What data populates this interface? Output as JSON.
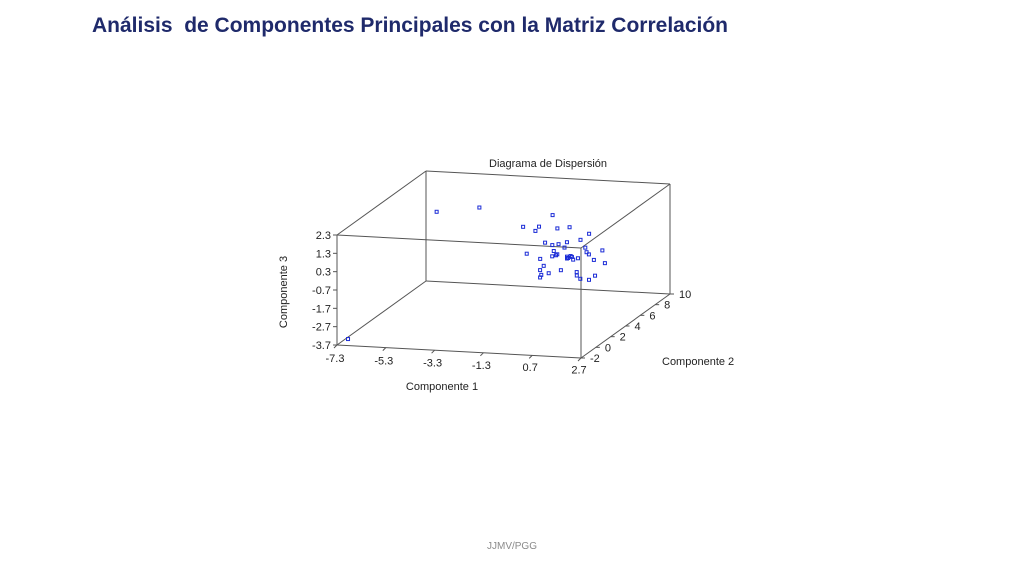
{
  "slide": {
    "title": "Análisis  de Componentes Principales con la Matriz Correlación",
    "footer": "JJMV/PGG"
  },
  "colors": {
    "title": "#1f2a6b",
    "points": "#1a2bd6",
    "axes": "#555555"
  },
  "chart_data": {
    "type": "scatter",
    "projection": "3d",
    "title": "Diagrama de Dispersión",
    "xlabel": "Componente 1",
    "ylabel": "Componente 2",
    "zlabel": "Componente 3",
    "xlim": [
      -7.3,
      2.7
    ],
    "ylim": [
      -2,
      10
    ],
    "zlim": [
      -3.7,
      2.3
    ],
    "xticks": [
      "-7.3",
      "-5.3",
      "-3.3",
      "-1.3",
      "0.7",
      "2.7"
    ],
    "yticks": [
      "-2",
      "0",
      "2",
      "4",
      "6",
      "8",
      "10"
    ],
    "zticks": [
      "2.3",
      "1.3",
      "0.3",
      "-0.7",
      "-1.7",
      "-2.7",
      "-3.7"
    ],
    "grid": false,
    "series": [
      {
        "x": [
          -7.0,
          -5.8,
          -4.2,
          -1.8,
          -1.6,
          -1.5,
          -1.3,
          -1.2,
          -1.0,
          -0.9,
          -0.8,
          -0.7,
          -0.6,
          -0.5,
          -0.5,
          -0.4,
          -0.3,
          -0.2,
          -0.1,
          0.0,
          0.0,
          0.1,
          0.2,
          0.3,
          0.4,
          0.5,
          0.6,
          0.7,
          0.8,
          0.9,
          1.0,
          1.1,
          1.2,
          1.4,
          1.6,
          -1.1,
          -0.3,
          0.2,
          0.6,
          -0.8,
          0.0,
          0.3,
          0.9,
          -0.6,
          0.4,
          1.3
        ],
        "y": [
          -1.5,
          6.5,
          7.0,
          5.0,
          6.0,
          4.5,
          5.5,
          7.0,
          6.5,
          5.0,
          4.0,
          6.0,
          4.5,
          5.5,
          3.5,
          5.0,
          4.0,
          6.0,
          4.5,
          5.0,
          3.0,
          5.5,
          4.0,
          4.5,
          5.0,
          3.5,
          6.0,
          4.0,
          5.0,
          4.5,
          3.5,
          5.0,
          4.0,
          5.5,
          4.5,
          5.0,
          4.5,
          5.0,
          4.5,
          4.0,
          5.0,
          4.0,
          5.0,
          3.5,
          5.5,
          4.5
        ],
        "z": [
          -3.5,
          1.2,
          1.4,
          1.1,
          0.6,
          -0.2,
          1.0,
          1.2,
          -0.6,
          0.3,
          -0.9,
          0.8,
          -1.2,
          0.1,
          -0.5,
          -0.3,
          0.5,
          0.9,
          -1.0,
          -0.4,
          0.2,
          -0.7,
          0.4,
          -0.2,
          -1.4,
          0.0,
          0.6,
          -0.9,
          -0.1,
          0.3,
          -1.1,
          -0.5,
          0.1,
          -0.8,
          0.2,
          -0.6,
          -0.2,
          -0.4,
          -0.3,
          -1.3,
          -0.5,
          0.7,
          -1.6,
          -1.0,
          0.4,
          -1.2
        ]
      }
    ]
  }
}
